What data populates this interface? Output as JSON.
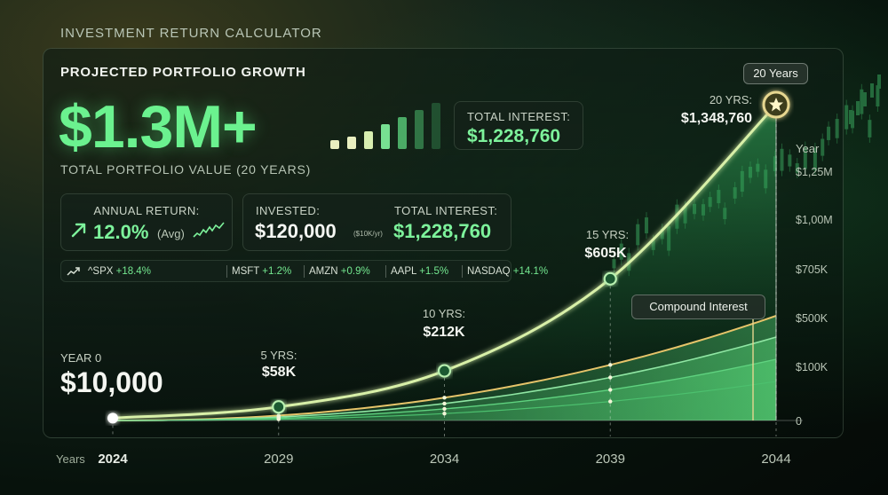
{
  "app": {
    "title": "INVESTMENT RETURN CALCULATOR"
  },
  "summary": {
    "panel_title": "PROJECTED PORTFOLIO GROWTH",
    "total_value": "$1.3M+",
    "total_value_caption": "TOTAL PORTFOLIO VALUE (20 YEARS)",
    "total_interest_label": "TOTAL INTEREST:",
    "total_interest_value": "$1,228,760"
  },
  "stats": {
    "annual_return_label": "ANNUAL RETURN:",
    "annual_return_value": "12.0%",
    "annual_return_note": "(Avg)",
    "invested_label": "INVESTED:",
    "invested_value": "$120,000",
    "invested_note": "($10K/yr)",
    "total_interest_label": "TOTAL INTEREST:",
    "total_interest_value": "$1,228,760"
  },
  "ticker": [
    {
      "symbol": "^SPX",
      "change": "+18.4%"
    },
    {
      "symbol": "MSFT",
      "change": "+1.2%"
    },
    {
      "symbol": "AMZN",
      "change": "+0.9%"
    },
    {
      "symbol": "AAPL",
      "change": "+1.5%"
    },
    {
      "symbol": "NASDAQ",
      "change": "+14.1%"
    }
  ],
  "colors": {
    "accent": "#6bf28f",
    "line": "#d8f0a8",
    "gold": "#e6c46a",
    "area": "#2fa35a"
  },
  "chart_data": {
    "type": "line",
    "x_label_left": "Years",
    "y_label_top": "Year",
    "x_ticks": [
      "2024",
      "2029",
      "2034",
      "2039",
      "2044"
    ],
    "y_ticks": [
      "0",
      "$100K",
      "$500K",
      "$705K",
      "$1,00M",
      "$1,25M"
    ],
    "series": [
      {
        "x": [
          2024,
          2029,
          2034,
          2039,
          2044
        ],
        "values": [
          10000,
          58000,
          212000,
          605000,
          1348760
        ]
      }
    ],
    "point_labels": [
      {
        "year": 2024,
        "caption": "YEAR 0",
        "value": "$10,000"
      },
      {
        "year": 2029,
        "caption": "5 YRS:",
        "value": "$58K"
      },
      {
        "year": 2034,
        "caption": "10 YRS:",
        "value": "$212K"
      },
      {
        "year": 2039,
        "caption": "15 YRS:",
        "value": "$605K"
      },
      {
        "year": 2044,
        "caption": "20 YRS:",
        "value": "$1,348,760"
      }
    ],
    "annotations": {
      "end_tooltip": "20 Years",
      "band_label": "Compound Interest"
    }
  }
}
